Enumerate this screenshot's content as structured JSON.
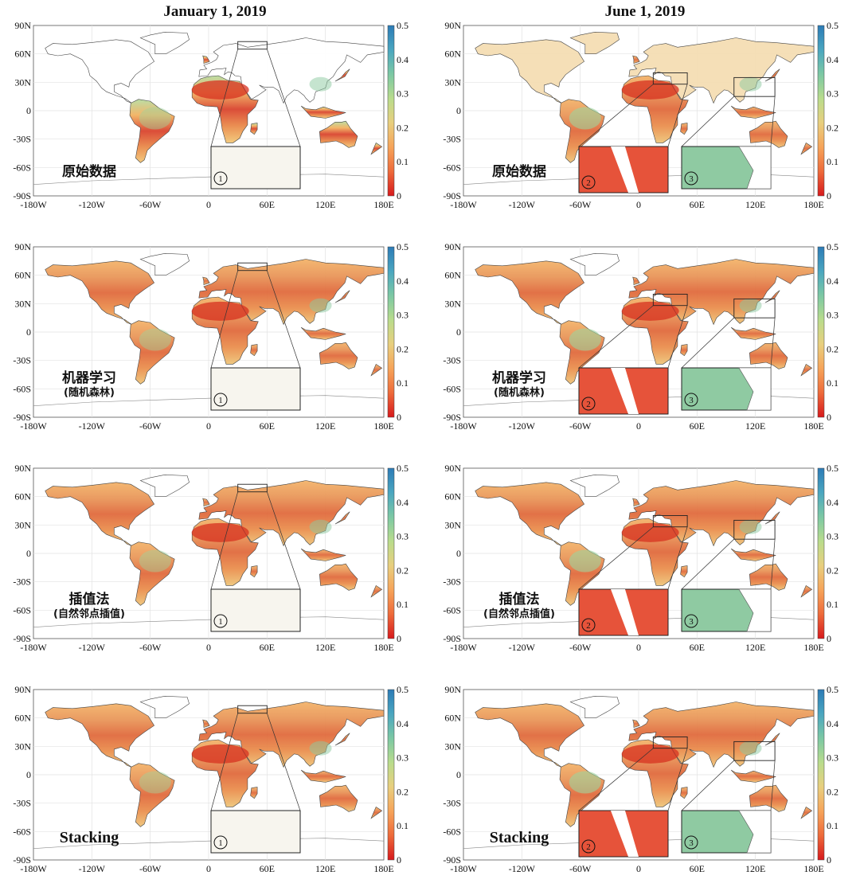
{
  "column_titles": [
    "January 1, 2019",
    "June 1, 2019"
  ],
  "methods": [
    {
      "label_line1": "原始数据",
      "label_line2": ""
    },
    {
      "label_line1": "机器学习",
      "label_line2": "(随机森林)"
    },
    {
      "label_line1": "插值法",
      "label_line2": "(自然邻点插值)"
    },
    {
      "label_line1": "Stacking",
      "label_line2": ""
    }
  ],
  "y_ticks": [
    "90N",
    "60N",
    "30N",
    "0",
    "-30S",
    "-60S",
    "-90S"
  ],
  "x_ticks": [
    "-180W",
    "-120W",
    "-60W",
    "0",
    "60E",
    "120E",
    "180E"
  ],
  "colorbar": {
    "ticks": [
      "0.5",
      "0.4",
      "0.3",
      "0.2",
      "0.1",
      "0"
    ],
    "range": [
      0,
      0.5
    ],
    "colors": [
      "#d7191c",
      "#ee6a3a",
      "#f6a45a",
      "#e8cf7e",
      "#b9dc8c",
      "#7cc8a4",
      "#4aa6c0",
      "#2c7bb6"
    ]
  },
  "insets": {
    "january": [
      {
        "number": "1"
      }
    ],
    "june": [
      {
        "number": "2"
      },
      {
        "number": "3"
      }
    ]
  }
}
